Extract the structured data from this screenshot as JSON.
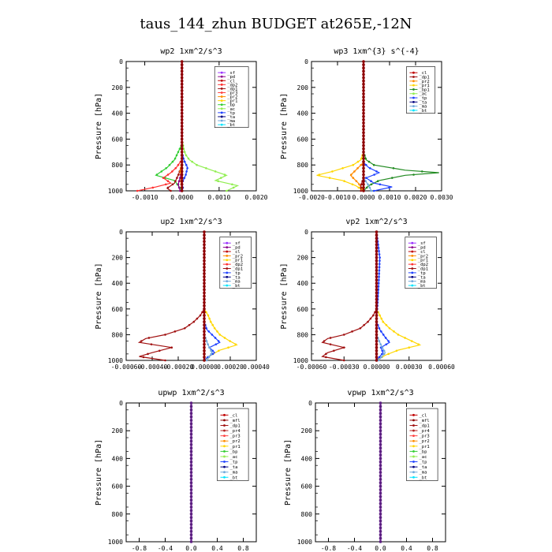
{
  "title": "taus_144_zhun  BUDGET at265E,-12N",
  "colors": {
    "_sf": "#9b30ff",
    "_pd": "#8b008b",
    "_cl": "#c00000",
    "_dp2": "#ff3030",
    "_dp1": "#a01010",
    "_pr3": "#ff4040",
    "_pr2": "#ff8c00",
    "_pr1": "#ffd700",
    "_bp": "#32cd32",
    "_ac": "#90ee50",
    "_tp": "#1e40ff",
    "_ta": "#000080",
    "_ma": "#6fa8dc",
    "_bt": "#00e5ff",
    "_mfl": "#8b0000",
    "_pr4": "#b22222",
    "_bp1": "#228b22",
    "_bp2": "#00aa00"
  },
  "chart_data": [
    {
      "type": "line",
      "title": "wp2  1xm^2/s^3",
      "ylabel": "Pressure [hPa]",
      "xlim": [
        -0.0015,
        0.002
      ],
      "ylim": [
        1000,
        0
      ],
      "xticks": [
        -0.001,
        0.0,
        0.001,
        0.002
      ],
      "xtick_labels": [
        "-0.0010",
        "0.0000",
        "0.0010",
        "0.0020"
      ],
      "yticks": [
        0,
        200,
        400,
        600,
        800,
        1000
      ],
      "ytick_labels": [
        "0",
        "200",
        "400",
        "600",
        "800",
        "1000"
      ],
      "legend": [
        "_sf",
        "_pd",
        "_cl",
        "_dp2",
        "_dp1",
        "_pr3",
        "_pr2",
        "_pr1",
        "_bp",
        "_ac",
        "_tp",
        "_ta",
        "_ma",
        "_bt"
      ],
      "legend_box": [
        0.68,
        0.04,
        0.26,
        0.47
      ],
      "series": [
        {
          "name": "_ac",
          "p": [
            0,
            600,
            680,
            720,
            760,
            800,
            840,
            880,
            920,
            960,
            1000
          ],
          "x": [
            0,
            0,
            5e-05,
            0.0001,
            0.0002,
            0.0004,
            0.0008,
            0.0012,
            0.0009,
            0.0015,
            0.0012
          ]
        },
        {
          "name": "_bp",
          "p": [
            0,
            640,
            700,
            760,
            820,
            860,
            880,
            920,
            960,
            1000
          ],
          "x": [
            0,
            0,
            -0.0001,
            -0.0002,
            -0.0004,
            -0.0006,
            -0.0007,
            -0.0002,
            -0.0001,
            0
          ]
        },
        {
          "name": "_dp2",
          "p": [
            0,
            760,
            820,
            860,
            900,
            940,
            970,
            1000
          ],
          "x": [
            0,
            0,
            -0.00015,
            -0.0003,
            -0.0005,
            -0.0003,
            -0.0007,
            -0.0012
          ]
        },
        {
          "name": "_dp1",
          "p": [
            0,
            800,
            880,
            940,
            980,
            1000
          ],
          "x": [
            0,
            0,
            -0.0001,
            -0.0002,
            -0.0004,
            -0.0003
          ]
        },
        {
          "name": "_tp",
          "p": [
            0,
            700,
            760,
            820,
            880,
            940,
            980,
            1000
          ],
          "x": [
            0,
            0,
            5e-05,
            0.00015,
            0.0001,
            0,
            3e-05,
            0
          ]
        },
        {
          "name": "_pr2",
          "p": [
            0,
            750,
            850,
            920,
            1000
          ],
          "x": [
            0,
            0,
            -4e-05,
            -3e-05,
            0
          ]
        },
        {
          "name": "_pd",
          "p": [
            0,
            850,
            900,
            950,
            1000
          ],
          "x": [
            0,
            0,
            -5e-05,
            -0.0001,
            -5e-05
          ]
        },
        {
          "name": "_sf",
          "p": [
            0,
            1000
          ],
          "x": [
            0,
            0
          ]
        }
      ]
    },
    {
      "type": "line",
      "title": "wp3  1xm^{3} s^{-4}",
      "ylabel": "Pressure [hPa]",
      "xlim": [
        -0.002,
        0.003
      ],
      "ylim": [
        1000,
        0
      ],
      "xticks": [
        -0.002,
        -0.001,
        0.0,
        0.001,
        0.002,
        0.003
      ],
      "xtick_labels": [
        "-0.0020",
        "-0.0010",
        "0.0000",
        "0.0010",
        "0.0020",
        "0.0030"
      ],
      "yticks": [
        0,
        200,
        400,
        600,
        800,
        1000
      ],
      "ytick_labels": [
        "0",
        "200",
        "400",
        "600",
        "800",
        "1000"
      ],
      "legend": [
        "_cl",
        "_dp1",
        "_pr2",
        "_pr1",
        "_bp1",
        "_ac",
        "_tp",
        "_ta",
        "_ma",
        "_bt"
      ],
      "legend_box": [
        0.73,
        0.04,
        0.22,
        0.36
      ],
      "series": [
        {
          "name": "_pr1",
          "p": [
            0,
            700,
            760,
            800,
            850,
            880,
            920,
            960,
            1000
          ],
          "x": [
            0,
            0,
            -0.0001,
            -0.0004,
            -0.0012,
            -0.0018,
            -0.0008,
            -0.0003,
            0
          ]
        },
        {
          "name": "_pr2",
          "p": [
            0,
            780,
            840,
            880,
            940,
            1000
          ],
          "x": [
            0,
            0,
            -0.0003,
            -0.0005,
            -0.0002,
            0
          ]
        },
        {
          "name": "_bp1",
          "p": [
            0,
            700,
            760,
            800,
            840,
            860,
            880,
            920,
            960,
            1000
          ],
          "x": [
            0,
            0,
            0.0001,
            0.0004,
            0.0016,
            0.0029,
            0.0016,
            0.0006,
            0.0002,
            0
          ]
        },
        {
          "name": "_tp",
          "p": [
            0,
            780,
            820,
            860,
            900,
            940,
            970,
            1000
          ],
          "x": [
            0,
            0,
            0.0002,
            0.0006,
            0.0001,
            0.0004,
            0.0011,
            0.0004
          ]
        },
        {
          "name": "_ma",
          "p": [
            0,
            900,
            960,
            1000
          ],
          "x": [
            0,
            0,
            0.0002,
            0.0003
          ]
        },
        {
          "name": "_dp1",
          "p": [
            0,
            900,
            960,
            1000
          ],
          "x": [
            0,
            0,
            -0.0001,
            -0.0001
          ]
        },
        {
          "name": "_cl",
          "p": [
            0,
            1000
          ],
          "x": [
            0,
            0
          ]
        }
      ]
    },
    {
      "type": "line",
      "title": "up2  1xm^2/s^3",
      "ylabel": "Pressure [hPa]",
      "xlim": [
        -0.0006,
        0.0004
      ],
      "ylim": [
        1000,
        0
      ],
      "xticks": [
        -0.0006,
        -0.0004,
        -0.0002,
        0.0,
        0.0002,
        0.0004
      ],
      "xtick_labels": [
        "-0.00060",
        "-0.00040",
        "-0.00020",
        "0.00000",
        "0.00020",
        "0.00040"
      ],
      "yticks": [
        0,
        200,
        400,
        600,
        800,
        1000
      ],
      "ytick_labels": [
        "0",
        "200",
        "400",
        "600",
        "800",
        "1000"
      ],
      "legend": [
        "_sf",
        "_pd",
        "_cl",
        "_pr2",
        "_pr1",
        "_dp2",
        "_dp1",
        "_tp",
        "_ta",
        "_ma",
        "_bt"
      ],
      "legend_box": [
        0.72,
        0.04,
        0.24,
        0.4
      ],
      "series": [
        {
          "name": "_dp1",
          "p": [
            0,
            600,
            650,
            700,
            750,
            800,
            830,
            860,
            900,
            940,
            970,
            1000
          ],
          "x": [
            0,
            0,
            -3e-05,
            -8e-05,
            -0.00015,
            -0.0003,
            -0.00045,
            -0.0005,
            -0.00025,
            -0.0004,
            -0.0005,
            -0.0003
          ]
        },
        {
          "name": "_pr1",
          "p": [
            0,
            600,
            650,
            700,
            750,
            800,
            840,
            880,
            920,
            960,
            1000
          ],
          "x": [
            0,
            0,
            3e-05,
            5e-05,
            8e-05,
            0.00012,
            0.00018,
            0.00025,
            0.00012,
            5e-05,
            0
          ]
        },
        {
          "name": "_tp",
          "p": [
            0,
            700,
            760,
            820,
            860,
            900,
            940,
            980,
            1000
          ],
          "x": [
            0,
            0,
            2e-05,
            8e-05,
            0.00012,
            4e-05,
            8e-05,
            2e-05,
            0
          ]
        },
        {
          "name": "_ma",
          "p": [
            0,
            800,
            880,
            940,
            1000
          ],
          "x": [
            0,
            0,
            3e-05,
            6e-05,
            2e-05
          ]
        },
        {
          "name": "_pd",
          "p": [
            0,
            1000
          ],
          "x": [
            0,
            0
          ]
        }
      ]
    },
    {
      "type": "line",
      "title": "vp2  1xm^2/s^3",
      "ylabel": "Pressure [hPa]",
      "xlim": [
        -0.0006,
        0.0006
      ],
      "ylim": [
        1000,
        0
      ],
      "xticks": [
        -0.0006,
        -0.0003,
        0.0,
        0.0003,
        0.0006
      ],
      "xtick_labels": [
        "-0.00060",
        "-0.00030",
        "0.00000",
        "0.00030",
        "0.00060"
      ],
      "yticks": [
        0,
        200,
        400,
        600,
        800,
        1000
      ],
      "ytick_labels": [
        "0",
        "200",
        "400",
        "600",
        "800",
        "1000"
      ],
      "legend": [
        "_sf",
        "_pd",
        "_cl",
        "_pr2",
        "_pr1",
        "_dp2",
        "_dp1",
        "_tp",
        "_ta",
        "_ma",
        "_bt"
      ],
      "legend_box": [
        0.72,
        0.04,
        0.24,
        0.4
      ],
      "series": [
        {
          "name": "_dp1",
          "p": [
            0,
            600,
            650,
            700,
            750,
            800,
            830,
            860,
            900,
            940,
            970,
            1000
          ],
          "x": [
            0,
            0,
            -3e-05,
            -8e-05,
            -0.00015,
            -0.0003,
            -0.00045,
            -0.0005,
            -0.0003,
            -0.00045,
            -0.0005,
            -0.0003
          ]
        },
        {
          "name": "_pr1",
          "p": [
            0,
            600,
            650,
            700,
            750,
            800,
            840,
            880,
            920,
            960,
            1000
          ],
          "x": [
            0,
            0,
            3e-05,
            6e-05,
            0.00012,
            0.0002,
            0.0003,
            0.0004,
            0.0002,
            8e-05,
            0
          ]
        },
        {
          "name": "_tp",
          "p": [
            0,
            200,
            400,
            700,
            760,
            820,
            860,
            900,
            940,
            1000
          ],
          "x": [
            0,
            3e-05,
            2e-05,
            0,
            3e-05,
            8e-05,
            0.00012,
            4e-05,
            6e-05,
            0
          ]
        },
        {
          "name": "_ma",
          "p": [
            0,
            800,
            880,
            940,
            1000
          ],
          "x": [
            0,
            0,
            4e-05,
            8e-05,
            2e-05
          ]
        },
        {
          "name": "_pd",
          "p": [
            0,
            1000
          ],
          "x": [
            0,
            0
          ]
        }
      ]
    },
    {
      "type": "line",
      "title": "upwp  1xm^2/s^3",
      "ylabel": "Pressure [hPa]",
      "xlim": [
        -1.0,
        1.0
      ],
      "ylim": [
        1000,
        0
      ],
      "xticks": [
        -0.8,
        -0.4,
        0.0,
        0.4,
        0.8
      ],
      "xtick_labels": [
        "-0.8",
        "-0.4",
        "0.0",
        "0.4",
        "0.8"
      ],
      "yticks": [
        0,
        200,
        400,
        600,
        800,
        1000
      ],
      "ytick_labels": [
        "0",
        "200",
        "400",
        "600",
        "800",
        "1000"
      ],
      "legend": [
        "_cl",
        "_mfl",
        "_dp1",
        "_pr4",
        "_pr3",
        "_pr2",
        "_pr1",
        "_bp",
        "_ac",
        "_tp",
        "_ta",
        "_ma",
        "_bt"
      ],
      "legend_box": [
        0.7,
        0.04,
        0.24,
        0.52
      ],
      "series": [
        {
          "name": "_cl",
          "p": [
            0,
            1000
          ],
          "x": [
            0,
            0
          ]
        }
      ]
    },
    {
      "type": "line",
      "title": "vpwp  1xm^2/s^3",
      "ylabel": "Pressure [hPa]",
      "xlim": [
        -1.0,
        1.0
      ],
      "ylim": [
        1000,
        0
      ],
      "xticks": [
        -0.8,
        -0.4,
        0.0,
        0.4,
        0.8
      ],
      "xtick_labels": [
        "-0.8",
        "-0.4",
        "0.0",
        "0.4",
        "0.8"
      ],
      "yticks": [
        0,
        200,
        400,
        600,
        800,
        1000
      ],
      "ytick_labels": [
        "0",
        "200",
        "400",
        "600",
        "800",
        "1000"
      ],
      "legend": [
        "_cl",
        "_mfl",
        "_dp1",
        "_pr4",
        "_pr3",
        "_pr2",
        "_pr1",
        "_bp",
        "_ac",
        "_tp",
        "_ta",
        "_ma",
        "_bt"
      ],
      "legend_box": [
        0.7,
        0.04,
        0.24,
        0.52
      ],
      "series": [
        {
          "name": "_cl",
          "p": [
            0,
            1000
          ],
          "x": [
            0,
            0
          ]
        }
      ]
    }
  ]
}
